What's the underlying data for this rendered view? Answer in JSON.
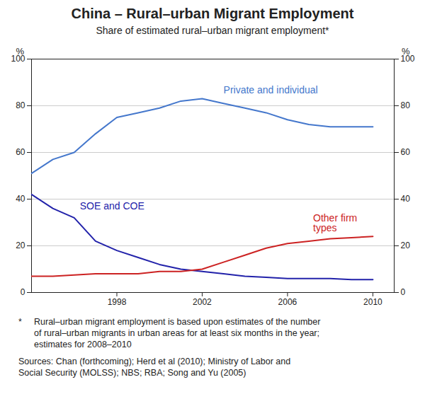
{
  "chart_data": {
    "type": "line",
    "title": "China – Rural–urban Migrant Employment",
    "subtitle": "Share of estimated rural–urban migrant employment*",
    "ylabel": "%",
    "y2label": "%",
    "x": [
      1994,
      1995,
      1996,
      1997,
      1998,
      1999,
      2000,
      2001,
      2002,
      2003,
      2004,
      2005,
      2006,
      2007,
      2008,
      2009,
      2010
    ],
    "series": [
      {
        "name": "Private and individual",
        "color": "#4477CC",
        "values": [
          51,
          57,
          60,
          68,
          75,
          77,
          79,
          82,
          83,
          81,
          79,
          77,
          74,
          72,
          71,
          71,
          71
        ]
      },
      {
        "name": "SOE and COE",
        "color": "#2222AA",
        "values": [
          42,
          36,
          32,
          22,
          18,
          15,
          12,
          10,
          9,
          8,
          7,
          6.5,
          6,
          6,
          6,
          5.5,
          5.5
        ]
      },
      {
        "name": "Other firm\ntypes",
        "color": "#CC2222",
        "values": [
          7,
          7,
          7.5,
          8,
          8,
          8,
          9,
          9,
          10,
          13,
          16,
          19,
          21,
          22,
          23,
          23.5,
          24
        ]
      }
    ],
    "xlim": [
      1994,
      2011
    ],
    "xticks": [
      1998,
      2002,
      2006,
      2010
    ],
    "ylim": [
      0,
      100
    ],
    "yticks": [
      0,
      20,
      40,
      60,
      80,
      100
    ],
    "y2lim": [
      0,
      100
    ],
    "y2ticks": [
      0,
      20,
      40,
      60,
      80,
      100
    ],
    "grid": true,
    "footnote_marker": "*",
    "footnote": "Rural–urban migrant employment is based upon estimates of the number\nof rural–urban migrants in urban areas for at least six months in the year;\nestimates for 2008–2010",
    "sources": "Sources:  Chan (forthcoming); Herd et al (2010); Ministry of Labor and\nSocial Security (MOLSS); NBS; RBA; Song and Yu (2005)"
  }
}
